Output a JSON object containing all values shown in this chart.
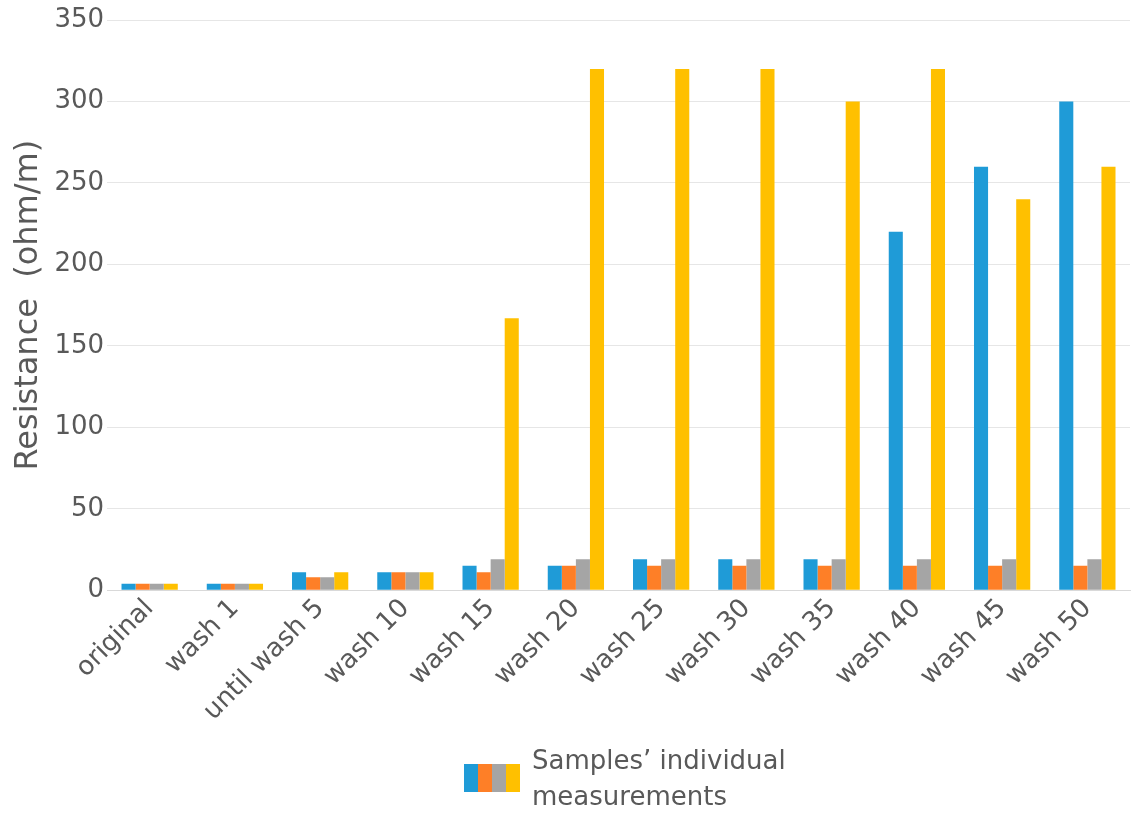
{
  "chart_data": {
    "type": "bar",
    "ylabel": "Resistance  (ohm/m)",
    "legend_title": "Samples’ individual measurements",
    "grid": "y",
    "categories": [
      "original",
      "wash 1",
      "until wash 5",
      "wash 10",
      "wash 15",
      "wash 20",
      "wash 25",
      "wash 30",
      "wash 35",
      "wash 40",
      "wash 45",
      "wash 50"
    ],
    "series": [
      {
        "color": "#1f9bd7",
        "values": [
          4,
          4,
          11,
          11,
          15,
          15,
          19,
          19,
          19,
          220,
          260,
          300
        ]
      },
      {
        "color": "#fe7f27",
        "values": [
          4,
          4,
          8,
          11,
          11,
          15,
          15,
          15,
          15,
          15,
          15,
          15
        ]
      },
      {
        "color": "#a5a5a5",
        "values": [
          4,
          4,
          8,
          11,
          19,
          19,
          19,
          19,
          19,
          19,
          19,
          19
        ]
      },
      {
        "color": "#ffc000",
        "values": [
          4,
          4,
          11,
          11,
          167,
          320,
          320,
          320,
          300,
          320,
          240,
          260
        ]
      }
    ],
    "ylim": [
      0,
      350
    ],
    "yticks": [
      0,
      50,
      100,
      150,
      200,
      250,
      300,
      350
    ]
  }
}
